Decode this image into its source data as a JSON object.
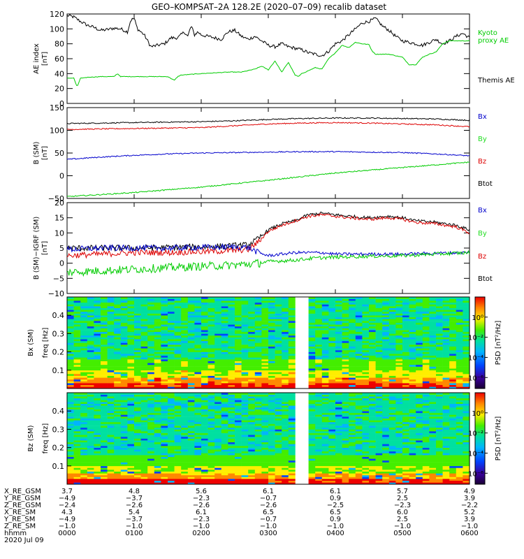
{
  "title": "GEO–KOMPSAT–2A 128.2E (2020–07–09) recalib dataset",
  "colors": {
    "black": "#000000",
    "green": "#00cc00",
    "blue": "#0000cc",
    "red": "#dd0000",
    "legend_green": "#22dd22"
  },
  "chart_data": [
    {
      "id": "ae",
      "type": "line",
      "ylabel": "AE index",
      "yunit": "[nT]",
      "ylim": [
        0,
        120
      ],
      "yticks": [
        "0",
        "20",
        "40",
        "60",
        "80",
        "100",
        "120"
      ],
      "xlim_hours": [
        0,
        6
      ],
      "legend": [
        {
          "label": "Kyoto",
          "color": "green"
        },
        {
          "label": "proxy AE",
          "color": "green"
        },
        {
          "label": "Themis AE",
          "color": "black"
        }
      ],
      "series": [
        {
          "name": "Themis AE",
          "color": "black",
          "x": [
            0,
            0.1,
            0.2,
            0.3,
            0.4,
            0.5,
            0.6,
            0.7,
            0.8,
            0.9,
            0.95,
            1.0,
            1.05,
            1.15,
            1.25,
            1.35,
            1.45,
            1.55,
            1.65,
            1.75,
            1.8,
            1.85,
            1.9,
            1.95,
            2.0,
            2.1,
            2.2,
            2.3,
            2.4,
            2.5,
            2.6,
            2.7,
            2.8,
            2.9,
            3.0,
            3.1,
            3.2,
            3.3,
            3.4,
            3.5,
            3.6,
            3.7,
            3.8,
            3.9,
            4.0,
            4.1,
            4.2,
            4.3,
            4.4,
            4.5,
            4.6,
            4.7,
            4.8,
            4.9,
            5.0,
            5.1,
            5.2,
            5.3,
            5.4,
            5.5,
            5.6,
            5.7,
            5.8,
            5.9,
            6.0
          ],
          "y": [
            118,
            116,
            110,
            105,
            102,
            98,
            99,
            101,
            100,
            96,
            112,
            114,
            100,
            92,
            76,
            78,
            80,
            88,
            88,
            96,
            90,
            104,
            92,
            96,
            92,
            90,
            88,
            86,
            96,
            98,
            90,
            86,
            90,
            84,
            78,
            76,
            80,
            76,
            74,
            72,
            68,
            66,
            64,
            70,
            80,
            84,
            92,
            100,
            108,
            110,
            114,
            104,
            98,
            90,
            84,
            82,
            80,
            78,
            82,
            86,
            80,
            84,
            90,
            94,
            88
          ]
        },
        {
          "name": "Kyoto proxy AE",
          "color": "green",
          "x": [
            0,
            0.1,
            0.15,
            0.2,
            0.25,
            0.3,
            0.5,
            0.7,
            0.75,
            0.8,
            0.9,
            1.5,
            1.6,
            1.65,
            1.7,
            2.0,
            2.4,
            2.6,
            2.8,
            2.9,
            3.0,
            3.1,
            3.2,
            3.3,
            3.4,
            3.45,
            3.5,
            3.6,
            3.7,
            3.8,
            3.9,
            4.0,
            4.1,
            4.2,
            4.3,
            4.4,
            4.5,
            4.55,
            4.6,
            4.8,
            4.9,
            5.0,
            5.1,
            5.2,
            5.3,
            5.4,
            5.5,
            5.6,
            5.7,
            5.8,
            6.0
          ],
          "y": [
            34,
            34,
            22,
            34,
            34,
            35,
            36,
            36,
            40,
            36,
            36,
            36,
            31,
            36,
            38,
            40,
            42,
            42,
            46,
            50,
            45,
            57,
            42,
            55,
            38,
            36,
            40,
            44,
            48,
            46,
            60,
            68,
            78,
            75,
            82,
            80,
            79,
            70,
            66,
            66,
            64,
            62,
            52,
            52,
            62,
            66,
            69,
            80,
            84,
            84,
            84
          ]
        }
      ]
    },
    {
      "id": "b",
      "type": "line",
      "ylabel": "B (SM)",
      "yunit": "[nT]",
      "ylim": [
        -50,
        150
      ],
      "yticks": [
        "−50",
        "0",
        "50",
        "100",
        "150"
      ],
      "xlim_hours": [
        0,
        6
      ],
      "legend": [
        {
          "label": "Bx",
          "color": "blue"
        },
        {
          "label": "By",
          "color": "legend_green"
        },
        {
          "label": "Bz",
          "color": "red"
        },
        {
          "label": "Btot",
          "color": "black"
        }
      ],
      "series": [
        {
          "name": "Btot",
          "color": "black",
          "x": [
            0,
            1,
            2,
            2.5,
            3,
            3.5,
            4,
            4.5,
            5,
            5.5,
            6
          ],
          "y": [
            115,
            117,
            119,
            121,
            124,
            126,
            127,
            127,
            126,
            125,
            122
          ]
        },
        {
          "name": "Bz",
          "color": "red",
          "x": [
            0,
            1,
            2,
            2.5,
            3,
            3.5,
            4,
            4.5,
            5,
            5.5,
            6
          ],
          "y": [
            102,
            104,
            106,
            110,
            114,
            116,
            117,
            116,
            114,
            112,
            108
          ]
        },
        {
          "name": "Bx",
          "color": "blue",
          "x": [
            0,
            0.5,
            1,
            1.5,
            2,
            2.5,
            3,
            3.5,
            4,
            4.5,
            5,
            5.5,
            6
          ],
          "y": [
            36,
            41,
            45,
            48,
            50,
            51,
            52,
            53,
            53,
            52,
            51,
            48,
            44
          ]
        },
        {
          "name": "By",
          "color": "green",
          "x": [
            0,
            1,
            2,
            3,
            4,
            5,
            6
          ],
          "y": [
            -46,
            -37,
            -25,
            -10,
            6,
            18,
            30
          ]
        }
      ]
    },
    {
      "id": "db",
      "type": "line",
      "ylabel": "B (SM)−IGRF (SM)",
      "yunit": "[nT]",
      "ylim": [
        -10,
        20
      ],
      "yticks": [
        "−10",
        "−5",
        "0",
        "5",
        "10",
        "15",
        "20"
      ],
      "xlim_hours": [
        0,
        6
      ],
      "legend": [
        {
          "label": "Bx",
          "color": "blue"
        },
        {
          "label": "By",
          "color": "legend_green"
        },
        {
          "label": "Bz",
          "color": "red"
        },
        {
          "label": "Btot",
          "color": "black"
        }
      ],
      "series": [
        {
          "name": "Btot",
          "color": "black",
          "x": [
            0,
            0.5,
            1,
            1.5,
            2,
            2.3,
            2.5,
            2.7,
            2.85,
            3.0,
            3.2,
            3.4,
            3.6,
            3.8,
            4.0,
            4.2,
            4.5,
            4.8,
            5.0,
            5.2,
            5.5,
            5.8,
            6.0
          ],
          "y": [
            5,
            5,
            5,
            5.2,
            5.4,
            5.6,
            5.8,
            6,
            8,
            11,
            13,
            14,
            16,
            16.5,
            16,
            15.5,
            15,
            15.5,
            15,
            14,
            13.5,
            12.5,
            11
          ]
        },
        {
          "name": "Bz",
          "color": "red",
          "x": [
            0,
            0.5,
            1,
            1.5,
            2,
            2.3,
            2.5,
            2.7,
            2.85,
            3.0,
            3.2,
            3.4,
            3.6,
            3.8,
            4.0,
            4.2,
            4.5,
            4.8,
            5.0,
            5.2,
            5.5,
            5.8,
            6.0
          ],
          "y": [
            2.5,
            3,
            3.5,
            3.5,
            3.8,
            4,
            4.2,
            4.5,
            7,
            10.5,
            12.5,
            14,
            15.5,
            16,
            15.5,
            15,
            14.5,
            15,
            14.5,
            13.5,
            13,
            12,
            10
          ]
        },
        {
          "name": "Bx",
          "color": "blue",
          "x": [
            0,
            0.5,
            1,
            1.5,
            2,
            2.3,
            2.5,
            2.7,
            2.85,
            3.0,
            3.2,
            3.4,
            3.6,
            3.8,
            4.0,
            4.5,
            5.0,
            5.5,
            6.0
          ],
          "y": [
            4.5,
            5,
            5,
            5,
            5.2,
            5.3,
            5.4,
            5.2,
            3.5,
            2.5,
            3,
            3.5,
            3.5,
            3.5,
            3,
            3,
            3,
            3.3,
            3.5
          ]
        },
        {
          "name": "By",
          "color": "green",
          "x": [
            0,
            0.5,
            1,
            1.5,
            2,
            2.3,
            2.5,
            2.7,
            2.85,
            3.0,
            3.2,
            3.4,
            3.6,
            3.8,
            4.0,
            4.5,
            5.0,
            5.5,
            6.0
          ],
          "y": [
            -3,
            -2.5,
            -2,
            -1.5,
            -1,
            -0.8,
            -0.6,
            -0.3,
            0,
            0.5,
            0.8,
            1,
            1.5,
            1.8,
            2,
            2.3,
            2.5,
            3,
            3.5
          ]
        }
      ]
    },
    {
      "id": "bx_spec",
      "type": "heatmap",
      "ylabel": "Bx (SM)",
      "yunit": "freq [Hz]",
      "ylim": [
        0,
        0.5
      ],
      "yticks": [
        "0.1",
        "0.2",
        "0.3",
        "0.4"
      ],
      "gap_hours": [
        3.42,
        3.55
      ],
      "colorbar": {
        "label": "PSD [nT²/Hz]",
        "ticks": [
          "10⁰",
          "10⁻²",
          "10⁻⁴",
          "10⁻⁶"
        ]
      }
    },
    {
      "id": "bz_spec",
      "type": "heatmap",
      "ylabel": "Bz (SM)",
      "yunit": "freq [Hz]",
      "ylim": [
        0,
        0.5
      ],
      "yticks": [
        "0.1",
        "0.2",
        "0.3",
        "0.4"
      ],
      "gap_hours": [
        3.42,
        3.55
      ],
      "colorbar": {
        "label": "PSD [nT²/Hz]",
        "ticks": [
          "10⁰",
          "10⁻²",
          "10⁻⁴",
          "10⁻⁶"
        ]
      }
    }
  ],
  "ephemeris": {
    "labels": [
      "X_RE_GSM",
      "Y_RE_GSM",
      "Z_RE_GSM",
      "X_RE_SM",
      "Y_RE_SM",
      "Z_RE_SM",
      "hhmm",
      "2020 Jul 09"
    ],
    "columns": [
      [
        "3.7",
        "−4.9",
        "−2.4",
        "4.3",
        "−4.9",
        "−1.0",
        "0000"
      ],
      [
        "4.8",
        "−3.7",
        "−2.6",
        "5.4",
        "−3.7",
        "−1.0",
        "0100"
      ],
      [
        "5.6",
        "−2.3",
        "−2.6",
        "6.1",
        "−2.3",
        "−1.0",
        "0200"
      ],
      [
        "6.1",
        "−0.7",
        "−2.6",
        "6.5",
        "−0.7",
        "−1.0",
        "0300"
      ],
      [
        "6.1",
        "0.9",
        "−2.5",
        "6.5",
        "0.9",
        "−1.0",
        "0400"
      ],
      [
        "5.7",
        "2.5",
        "−2.3",
        "6.0",
        "2.5",
        "−1.0",
        "0500"
      ],
      [
        "4.9",
        "3.9",
        "−2.2",
        "5.2",
        "3.9",
        "−1.0",
        "0600"
      ]
    ]
  }
}
